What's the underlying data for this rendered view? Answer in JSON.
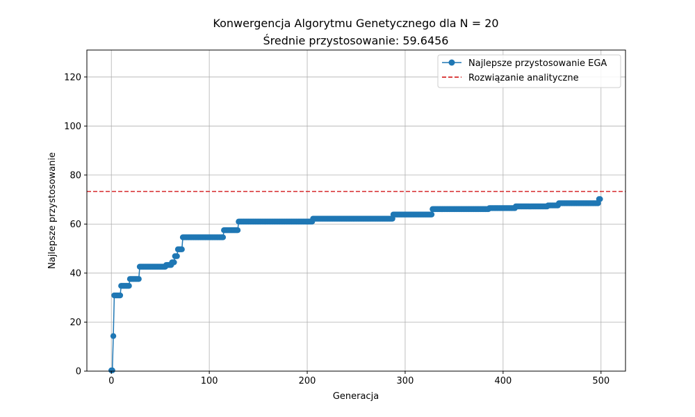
{
  "chart_data": {
    "type": "line",
    "title": "Konwergencja Algorytmu Genetycznego dla N = 20",
    "subtitle": "Średnie przystosowanie: 59.6456",
    "xlabel": "Generacja",
    "ylabel": "Najlepsze przystosowanie",
    "xlim": [
      -25,
      525
    ],
    "ylim": [
      0,
      131
    ],
    "xticks": [
      0,
      100,
      200,
      300,
      400,
      500
    ],
    "yticks": [
      0,
      20,
      40,
      60,
      80,
      100,
      120
    ],
    "grid": true,
    "legend_position": "top-right",
    "colors": {
      "series": "#1f77b4",
      "reference": "#d62728",
      "grid": "#b0b0b0"
    },
    "series": [
      {
        "name": "Najlepsze przystosowanie EGA",
        "style": "solid-with-markers",
        "steps": [
          [
            0,
            0.3
          ],
          [
            2,
            14.3
          ],
          [
            3,
            30.9
          ],
          [
            10,
            34.8
          ],
          [
            19,
            37.6
          ],
          [
            29,
            42.6
          ],
          [
            56,
            43.3
          ],
          [
            62,
            44.4
          ],
          [
            65,
            46.9
          ],
          [
            68,
            49.7
          ],
          [
            73,
            54.6
          ],
          [
            115,
            57.5
          ],
          [
            130,
            61.0
          ],
          [
            206,
            62.2
          ],
          [
            288,
            63.9
          ],
          [
            328,
            66.1
          ],
          [
            386,
            66.5
          ],
          [
            413,
            67.2
          ],
          [
            446,
            67.6
          ],
          [
            457,
            68.5
          ],
          [
            498,
            70.2
          ]
        ],
        "x_end": 499
      },
      {
        "name": "Rozwiązanie analityczne",
        "style": "dashed",
        "y": 73.3
      }
    ]
  }
}
